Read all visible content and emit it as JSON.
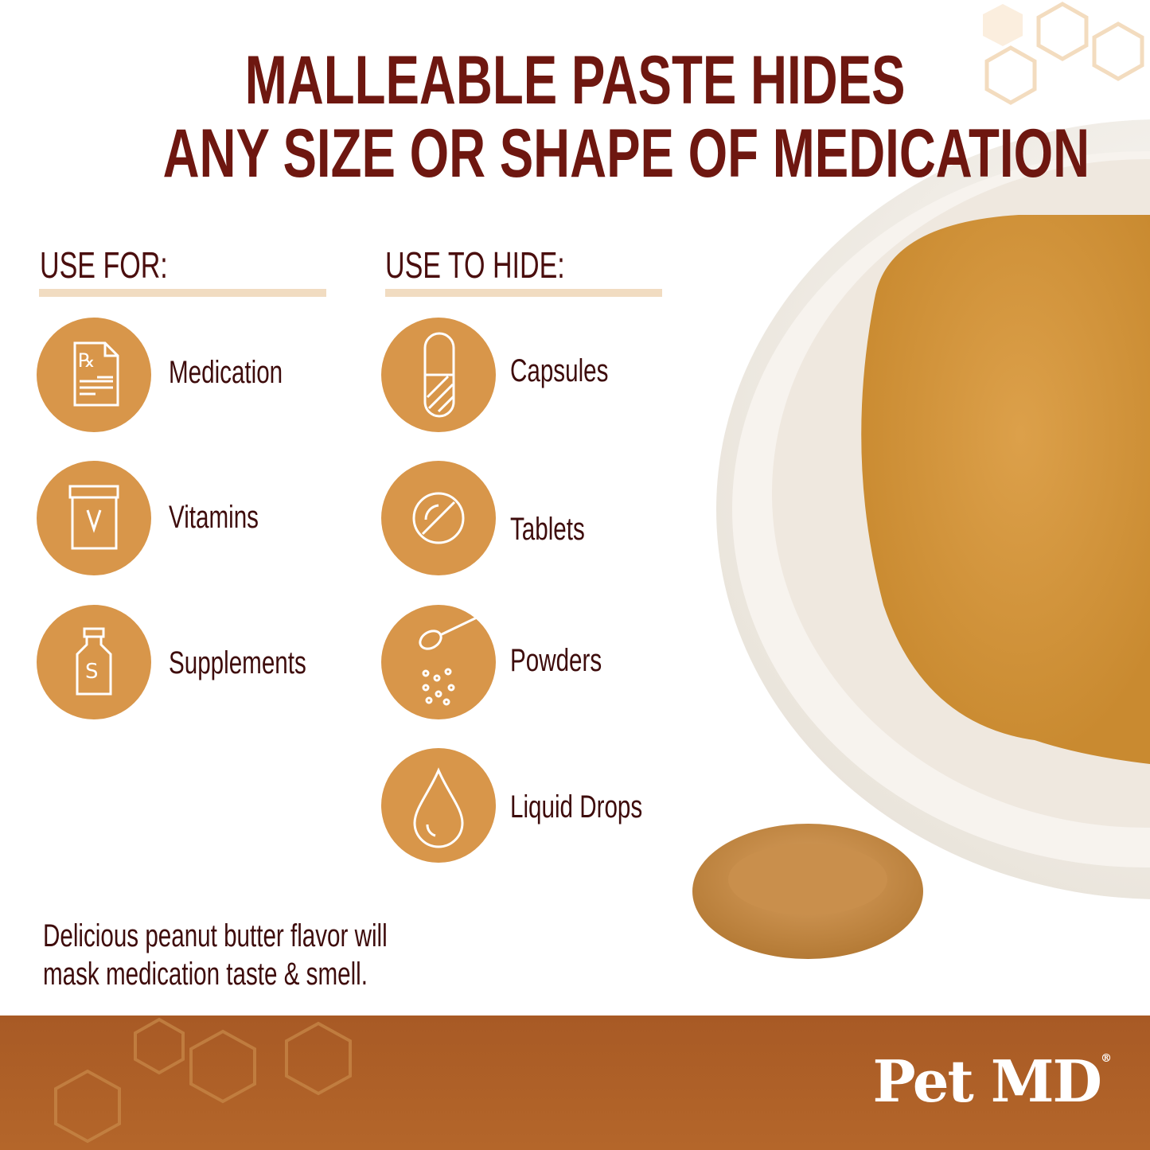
{
  "title": {
    "line1": "MALLEABLE PASTE HIDES",
    "line2": "ANY SIZE OR SHAPE OF MEDICATION"
  },
  "use_for": {
    "heading": "USE FOR:",
    "items": [
      {
        "label": "Medication",
        "icon": "prescription-icon"
      },
      {
        "label": "Vitamins",
        "icon": "vitamin-jar-icon"
      },
      {
        "label": "Supplements",
        "icon": "supplement-bottle-icon"
      }
    ]
  },
  "use_to_hide": {
    "heading": "USE TO HIDE:",
    "items": [
      {
        "label": "Capsules",
        "icon": "capsule-icon"
      },
      {
        "label": "Tablets",
        "icon": "tablet-icon"
      },
      {
        "label": "Powders",
        "icon": "powder-spoon-icon"
      },
      {
        "label": "Liquid Drops",
        "icon": "drop-icon"
      }
    ]
  },
  "footer_text": {
    "line1": "Delicious peanut butter flavor will",
    "line2": "mask medication taste & smell."
  },
  "brand": {
    "logo": "Pet MD",
    "mark": "®"
  },
  "colors": {
    "title": "#6e1710",
    "icon_circle": "#d8964a",
    "band": "#a85a25",
    "underline": "#f1dcc1"
  }
}
